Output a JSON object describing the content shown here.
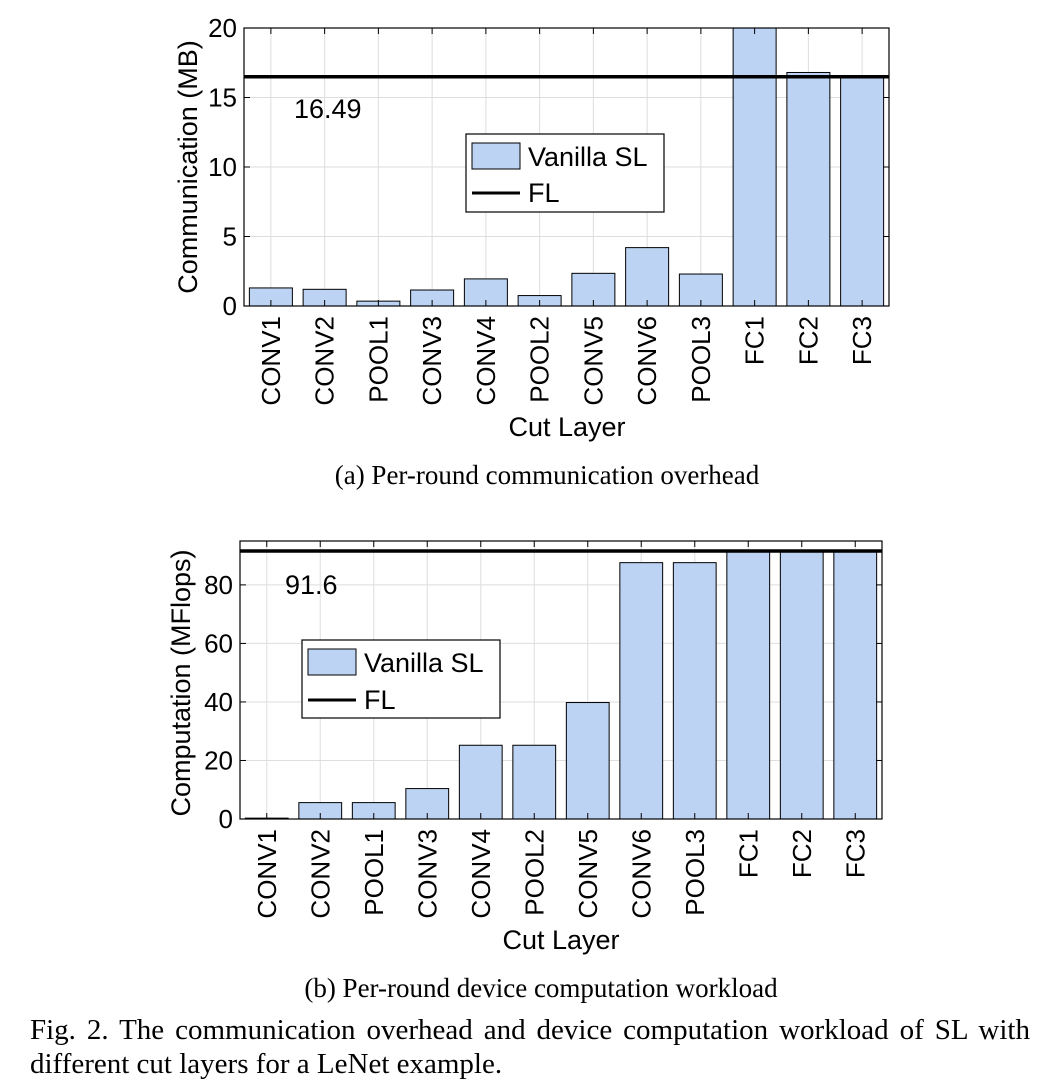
{
  "chart_data": [
    {
      "type": "bar",
      "subcaption": "(a) Per-round communication overhead",
      "xlabel": "Cut Layer",
      "ylabel": "Communication (MB)",
      "ylim": [
        0,
        20
      ],
      "yticks": [
        0,
        5,
        10,
        15,
        20
      ],
      "categories": [
        "CONV1",
        "CONV2",
        "POOL1",
        "CONV3",
        "CONV4",
        "POOL2",
        "CONV5",
        "CONV6",
        "POOL3",
        "FC1",
        "FC2",
        "FC3"
      ],
      "series": [
        {
          "name": "Vanilla SL",
          "kind": "bar",
          "values": [
            1.3,
            1.2,
            0.35,
            1.15,
            1.95,
            0.75,
            2.35,
            4.2,
            2.3,
            20.0,
            16.8,
            16.55
          ]
        },
        {
          "name": "FL",
          "kind": "hline",
          "value": 16.49
        }
      ],
      "annotation": "16.49",
      "legend": "center",
      "grid": true,
      "colors": {
        "bar": "#bcd3f3",
        "line": "#000000"
      }
    },
    {
      "type": "bar",
      "subcaption": "(b) Per-round device computation workload",
      "xlabel": "Cut Layer",
      "ylabel": "Computation (MFlops)",
      "ylim": [
        0,
        95
      ],
      "yticks": [
        0,
        20,
        40,
        60,
        80
      ],
      "categories": [
        "CONV1",
        "CONV2",
        "POOL1",
        "CONV3",
        "CONV4",
        "POOL2",
        "CONV5",
        "CONV6",
        "POOL3",
        "FC1",
        "FC2",
        "FC3"
      ],
      "series": [
        {
          "name": "Vanilla SL",
          "kind": "bar",
          "values": [
            0.3,
            5.6,
            5.6,
            10.4,
            25.2,
            25.2,
            39.8,
            87.6,
            87.6,
            91.6,
            91.6,
            91.6
          ]
        },
        {
          "name": "FL",
          "kind": "hline",
          "value": 91.6
        }
      ],
      "annotation": "91.6",
      "legend": "center-left",
      "grid": true,
      "colors": {
        "bar": "#bcd3f3",
        "line": "#000000"
      }
    }
  ],
  "caption": "Fig. 2.   The communication overhead and device computation workload of SL with different cut layers for a LeNet example."
}
